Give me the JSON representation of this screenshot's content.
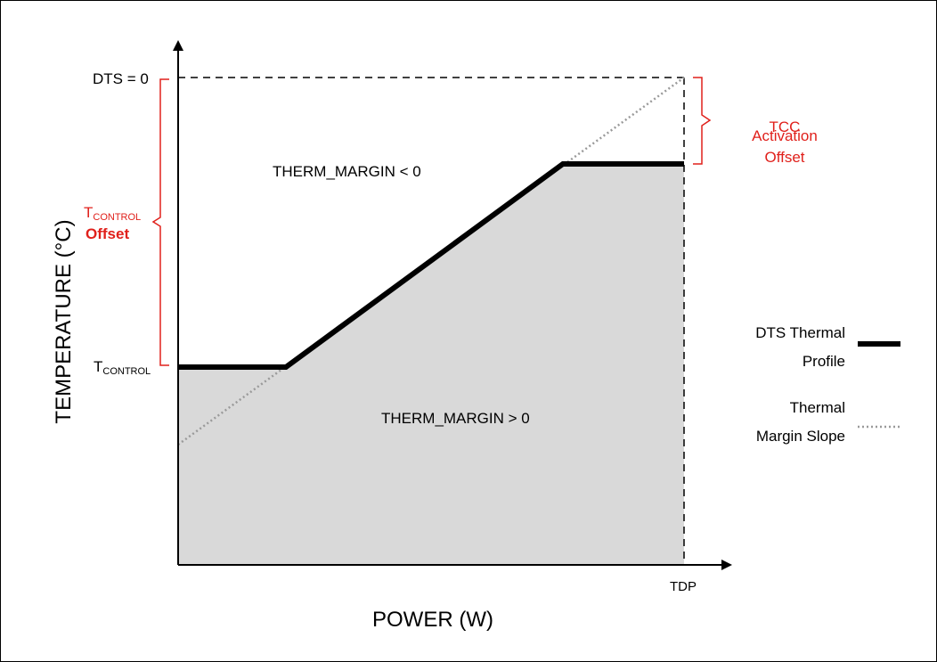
{
  "diagram": {
    "y_axis_title": "TEMPERATURE (°C)",
    "x_axis_title": "POWER (W)",
    "y_ticks": {
      "dts_zero": "DTS = 0",
      "tcontrol_main": "T",
      "tcontrol_sub": "CONTROL"
    },
    "x_ticks": {
      "tdp": "TDP"
    },
    "regions": {
      "above": "THERM_MARGIN < 0",
      "below": "THERM_MARGIN > 0"
    },
    "annotations": {
      "tcc_line1": "TCC",
      "tcc_line2": "Activation",
      "tcc_line3": "Offset",
      "tcontrol_offset_main": "T",
      "tcontrol_offset_sub": "CONTROL",
      "tcontrol_offset_line2": "Offset"
    },
    "legend": {
      "profile_line1": "DTS Thermal",
      "profile_line2": "Profile",
      "slope_line1": "Thermal",
      "slope_line2": "Margin Slope"
    },
    "colors": {
      "annotation_red": "#e0201b",
      "fill_gray": "#d9d9d9",
      "slope_gray": "#9a9a9a"
    }
  }
}
